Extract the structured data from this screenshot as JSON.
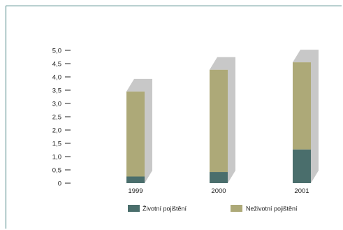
{
  "chart_data": {
    "type": "bar",
    "stacked": true,
    "three_d": true,
    "categories": [
      "1999",
      "2000",
      "2001"
    ],
    "series": [
      {
        "name": "Životní pojištění",
        "values": [
          0.25,
          0.42,
          1.27
        ],
        "color": "#4a6e6c"
      },
      {
        "name": "Neživotní pojištění",
        "values": [
          3.2,
          3.85,
          3.28
        ],
        "color": "#ada978"
      }
    ],
    "y_ticks": [
      "0",
      "0,5",
      "1,0",
      "1,5",
      "2,0",
      "2,5",
      "3,0",
      "3,5",
      "4,0",
      "4,5",
      "5,0"
    ],
    "ylim": [
      0,
      5
    ],
    "title": "",
    "xlabel": "",
    "ylabel": "",
    "grid": false,
    "legend_position": "bottom",
    "frame_color": "#3f7f7f",
    "shadow_color": "#c8c8c8"
  }
}
